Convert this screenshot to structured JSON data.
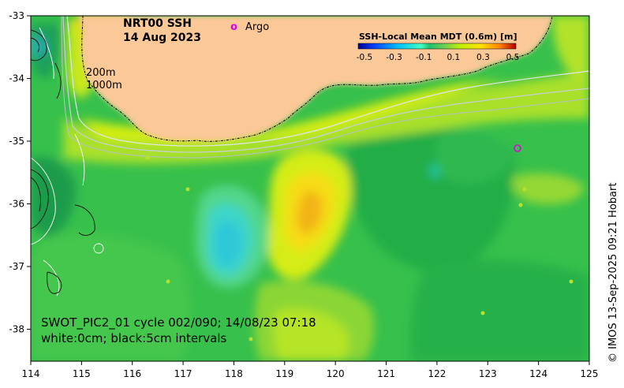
{
  "title": {
    "line1": "NRT00 SSH",
    "line2": "14 Aug 2023"
  },
  "legend": {
    "argo_marker": "o",
    "argo_label": "Argo"
  },
  "isobaths": {
    "label_200": "200m",
    "label_1000": "1000m"
  },
  "colorbar": {
    "title": "SSH-Local Mean MDT (0.6m) [m]",
    "ticks": [
      "-0.5",
      "-0.3",
      "-0.1",
      "0.1",
      "0.3",
      "0.5"
    ],
    "colors": [
      "#00008f",
      "#0040ff",
      "#00bfff",
      "#40ffbf",
      "#20c070",
      "#70d050",
      "#c0f000",
      "#ffe000",
      "#ff8000",
      "#e02000",
      "#800000"
    ]
  },
  "pass_info": {
    "line1": "SWOT_PIC2_01 cycle 002/090; 14/08/23 07:18",
    "line2": "white:0cm; black:5cm intervals"
  },
  "axes": {
    "x_ticks": [
      "114",
      "115",
      "116",
      "117",
      "118",
      "119",
      "120",
      "121",
      "122",
      "123",
      "124",
      "125"
    ],
    "y_ticks": [
      "-33",
      "-34",
      "-35",
      "-36",
      "-37",
      "-38"
    ]
  },
  "credit": "© IMOS 13-Sep-2025 09:21 Hobart",
  "colors": {
    "land": "#fbc898",
    "ocean_base": "#37c04c"
  }
}
